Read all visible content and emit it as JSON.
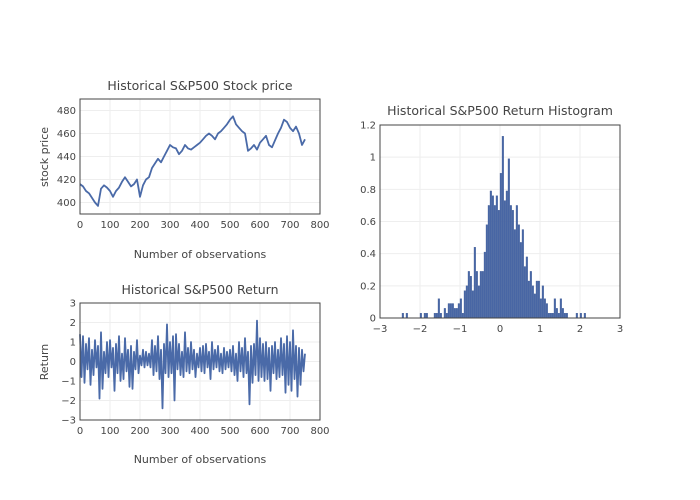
{
  "chart_data": [
    {
      "type": "line",
      "title": "Historical S&P500 Stock price",
      "xlabel": "Number of observations",
      "ylabel": "stock price",
      "xlim": [
        0,
        800
      ],
      "ylim": [
        390,
        490
      ],
      "xticks": [
        0,
        100,
        200,
        300,
        400,
        500,
        600,
        700,
        800
      ],
      "yticks": [
        400,
        420,
        440,
        460,
        480
      ],
      "grid": true,
      "color": "#4a6aa8",
      "x_step": 10,
      "values": [
        416,
        414,
        410,
        408,
        404,
        400,
        397,
        412,
        415,
        413,
        410,
        405,
        410,
        413,
        418,
        422,
        418,
        414,
        416,
        420,
        405,
        415,
        420,
        422,
        430,
        434,
        438,
        435,
        440,
        445,
        450,
        448,
        447,
        442,
        445,
        450,
        447,
        446,
        448,
        450,
        452,
        455,
        458,
        460,
        458,
        455,
        460,
        462,
        465,
        468,
        472,
        475,
        468,
        465,
        462,
        460,
        445,
        447,
        450,
        446,
        452,
        455,
        458,
        450,
        448,
        454,
        460,
        465,
        472,
        470,
        465,
        462,
        466,
        460,
        450,
        455
      ]
    },
    {
      "type": "line",
      "title": "Historical S&P500 Return",
      "xlabel": "Number of observations",
      "ylabel": "Return",
      "xlim": [
        0,
        800
      ],
      "ylim": [
        -3,
        3
      ],
      "xticks": [
        0,
        100,
        200,
        300,
        400,
        500,
        600,
        700,
        800
      ],
      "yticks": [
        -3,
        -2,
        -1,
        0,
        1,
        2,
        3
      ],
      "grid": true,
      "color": "#4a6aa8",
      "x_step": 5,
      "values": [
        1.4,
        -0.8,
        1.3,
        -1.1,
        0.9,
        -0.4,
        1.2,
        -1.2,
        0.6,
        -0.7,
        1.1,
        -0.3,
        0.8,
        -1.9,
        1.5,
        -1.4,
        0.5,
        -0.6,
        1.0,
        -0.8,
        1.1,
        -0.3,
        0.7,
        -1.5,
        0.9,
        -0.6,
        1.3,
        -1.0,
        0.4,
        -0.9,
        1.2,
        -0.5,
        0.6,
        -1.3,
        0.8,
        -1.4,
        0.5,
        -0.4,
        1.1,
        -0.6,
        0.3,
        -0.2,
        0.6,
        -0.3,
        0.5,
        -0.2,
        0.4,
        -0.3,
        1.1,
        -0.7,
        0.8,
        -0.5,
        1.3,
        -0.9,
        0.6,
        -2.4,
        0.9,
        -0.6,
        1.9,
        -0.8,
        1.0,
        -0.6,
        1.3,
        -2.0,
        1.4,
        -0.4,
        0.9,
        -0.7,
        0.5,
        -0.8,
        1.5,
        -0.5,
        0.7,
        -0.6,
        1.0,
        -0.4,
        0.6,
        -0.8,
        0.4,
        -0.3,
        0.7,
        -0.5,
        0.8,
        -0.6,
        0.9,
        -0.3,
        0.5,
        -0.9,
        1.0,
        -0.4,
        0.6,
        -0.3,
        0.8,
        -0.5,
        0.4,
        -0.6,
        0.7,
        -0.4,
        0.5,
        -0.3,
        0.6,
        -0.5,
        0.8,
        -0.7,
        0.4,
        -1.0,
        1.0,
        -0.5,
        0.7,
        -0.8,
        1.2,
        -0.6,
        0.5,
        -2.2,
        0.8,
        -1.1,
        0.9,
        -0.7,
        2.1,
        -1.0,
        1.2,
        -0.8,
        0.9,
        -1.0,
        1.0,
        -0.9,
        0.7,
        -1.5,
        0.8,
        -0.6,
        1.0,
        -0.9,
        0.6,
        -0.8,
        1.2,
        -0.7,
        0.9,
        -1.6,
        1.3,
        -1.2,
        1.0,
        -1.5,
        1.6,
        -0.9,
        0.8,
        -1.8,
        0.7,
        -1.2,
        0.6,
        -0.5,
        0.4
      ]
    },
    {
      "type": "bar",
      "title": "Historical S&P500 Return Histogram",
      "xlabel": "",
      "ylabel": "",
      "xlim": [
        -3,
        3
      ],
      "ylim": [
        0,
        1.2
      ],
      "xticks": [
        -3,
        -2,
        -1,
        0,
        1,
        2,
        3
      ],
      "xtick_labels": [
        "−3",
        "−2",
        "−1",
        "0",
        "1",
        "2",
        "3"
      ],
      "yticks": [
        0,
        0.2,
        0.4,
        0.6,
        0.8,
        1,
        1.2
      ],
      "grid": true,
      "color": "#4a6aa8",
      "bin_start": -2.45,
      "bin_width": 0.05,
      "values": [
        0.03,
        0,
        0.03,
        0,
        0,
        0,
        0,
        0,
        0,
        0.03,
        0,
        0.03,
        0.03,
        0,
        0,
        0,
        0.03,
        0.03,
        0.12,
        0.03,
        0,
        0.06,
        0.03,
        0.09,
        0.09,
        0.09,
        0.06,
        0.06,
        0.09,
        0.12,
        0.03,
        0.17,
        0.2,
        0.29,
        0.26,
        0.17,
        0.44,
        0.29,
        0.2,
        0.29,
        0.29,
        0.41,
        0.58,
        0.7,
        0.79,
        0.76,
        0.7,
        0.76,
        0.67,
        0.9,
        1.13,
        0.73,
        0.79,
        0.99,
        0.7,
        0.67,
        0.55,
        0.7,
        0.58,
        0.47,
        0.55,
        0.32,
        0.38,
        0.23,
        0.29,
        0.2,
        0.15,
        0.23,
        0.23,
        0.12,
        0.2,
        0.12,
        0.09,
        0.03,
        0.03,
        0.03,
        0.12,
        0.06,
        0.03,
        0.12,
        0.06,
        0.03,
        0.03,
        0,
        0,
        0,
        0,
        0.03,
        0,
        0.03,
        0,
        0.03
      ]
    }
  ]
}
